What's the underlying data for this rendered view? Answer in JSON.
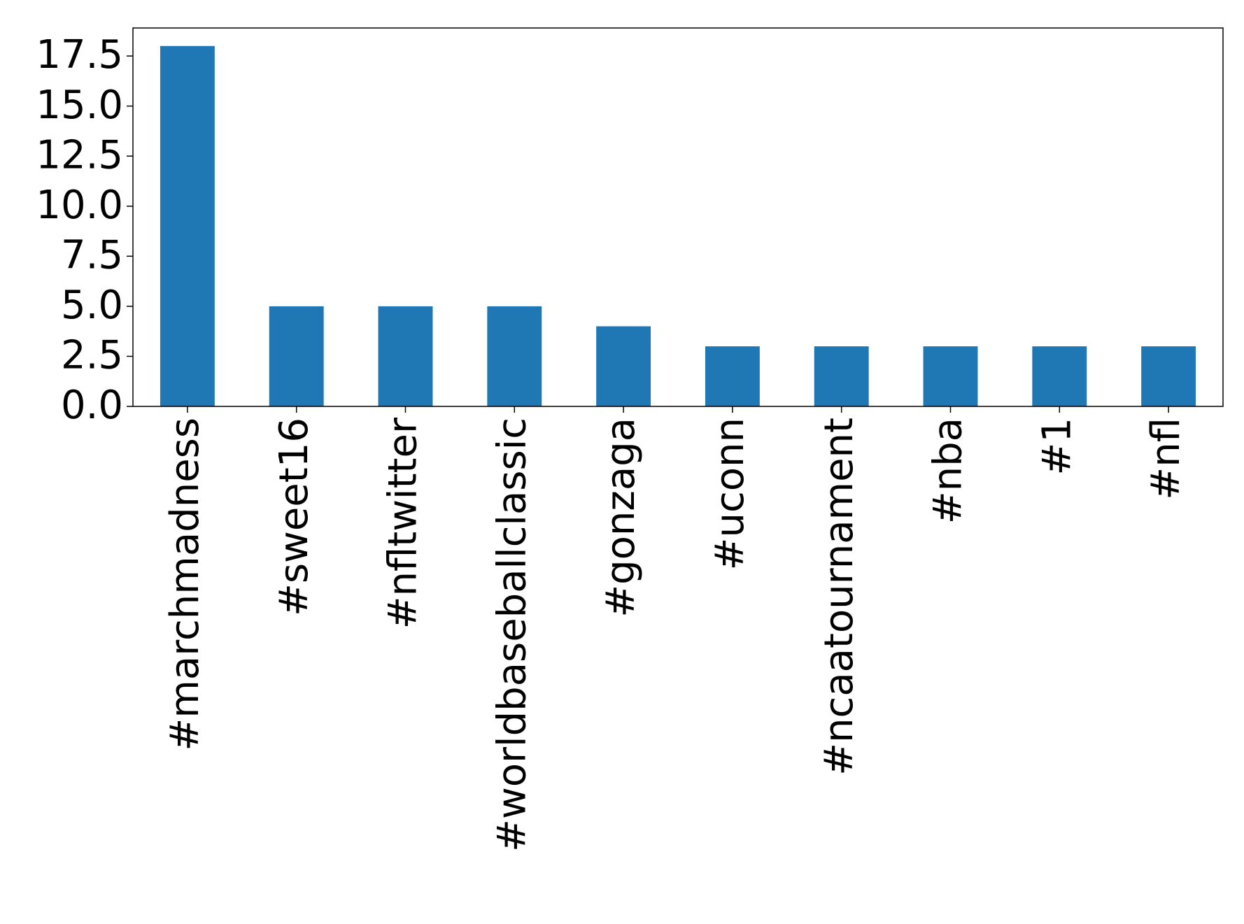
{
  "chart_data": {
    "type": "bar",
    "categories": [
      "#marchmadness",
      "#sweet16",
      "#nfltwitter",
      "#worldbaseballclassic",
      "#gonzaga",
      "#uconn",
      "#ncaatournament",
      "#nba",
      "#1",
      "#nfl"
    ],
    "values": [
      18,
      5,
      5,
      5,
      4,
      3,
      3,
      3,
      3,
      3
    ],
    "color": "#1f77b4",
    "ylim": [
      0,
      18.9
    ],
    "yticks": [
      {
        "value": 0,
        "label": "0.0"
      },
      {
        "value": 2.5,
        "label": "2.5"
      },
      {
        "value": 5,
        "label": "5.0"
      },
      {
        "value": 7.5,
        "label": "7.5"
      },
      {
        "value": 10,
        "label": "10.0"
      },
      {
        "value": 12.5,
        "label": "12.5"
      },
      {
        "value": 15,
        "label": "15.0"
      },
      {
        "value": 17.5,
        "label": "17.5"
      }
    ],
    "grid": false
  }
}
